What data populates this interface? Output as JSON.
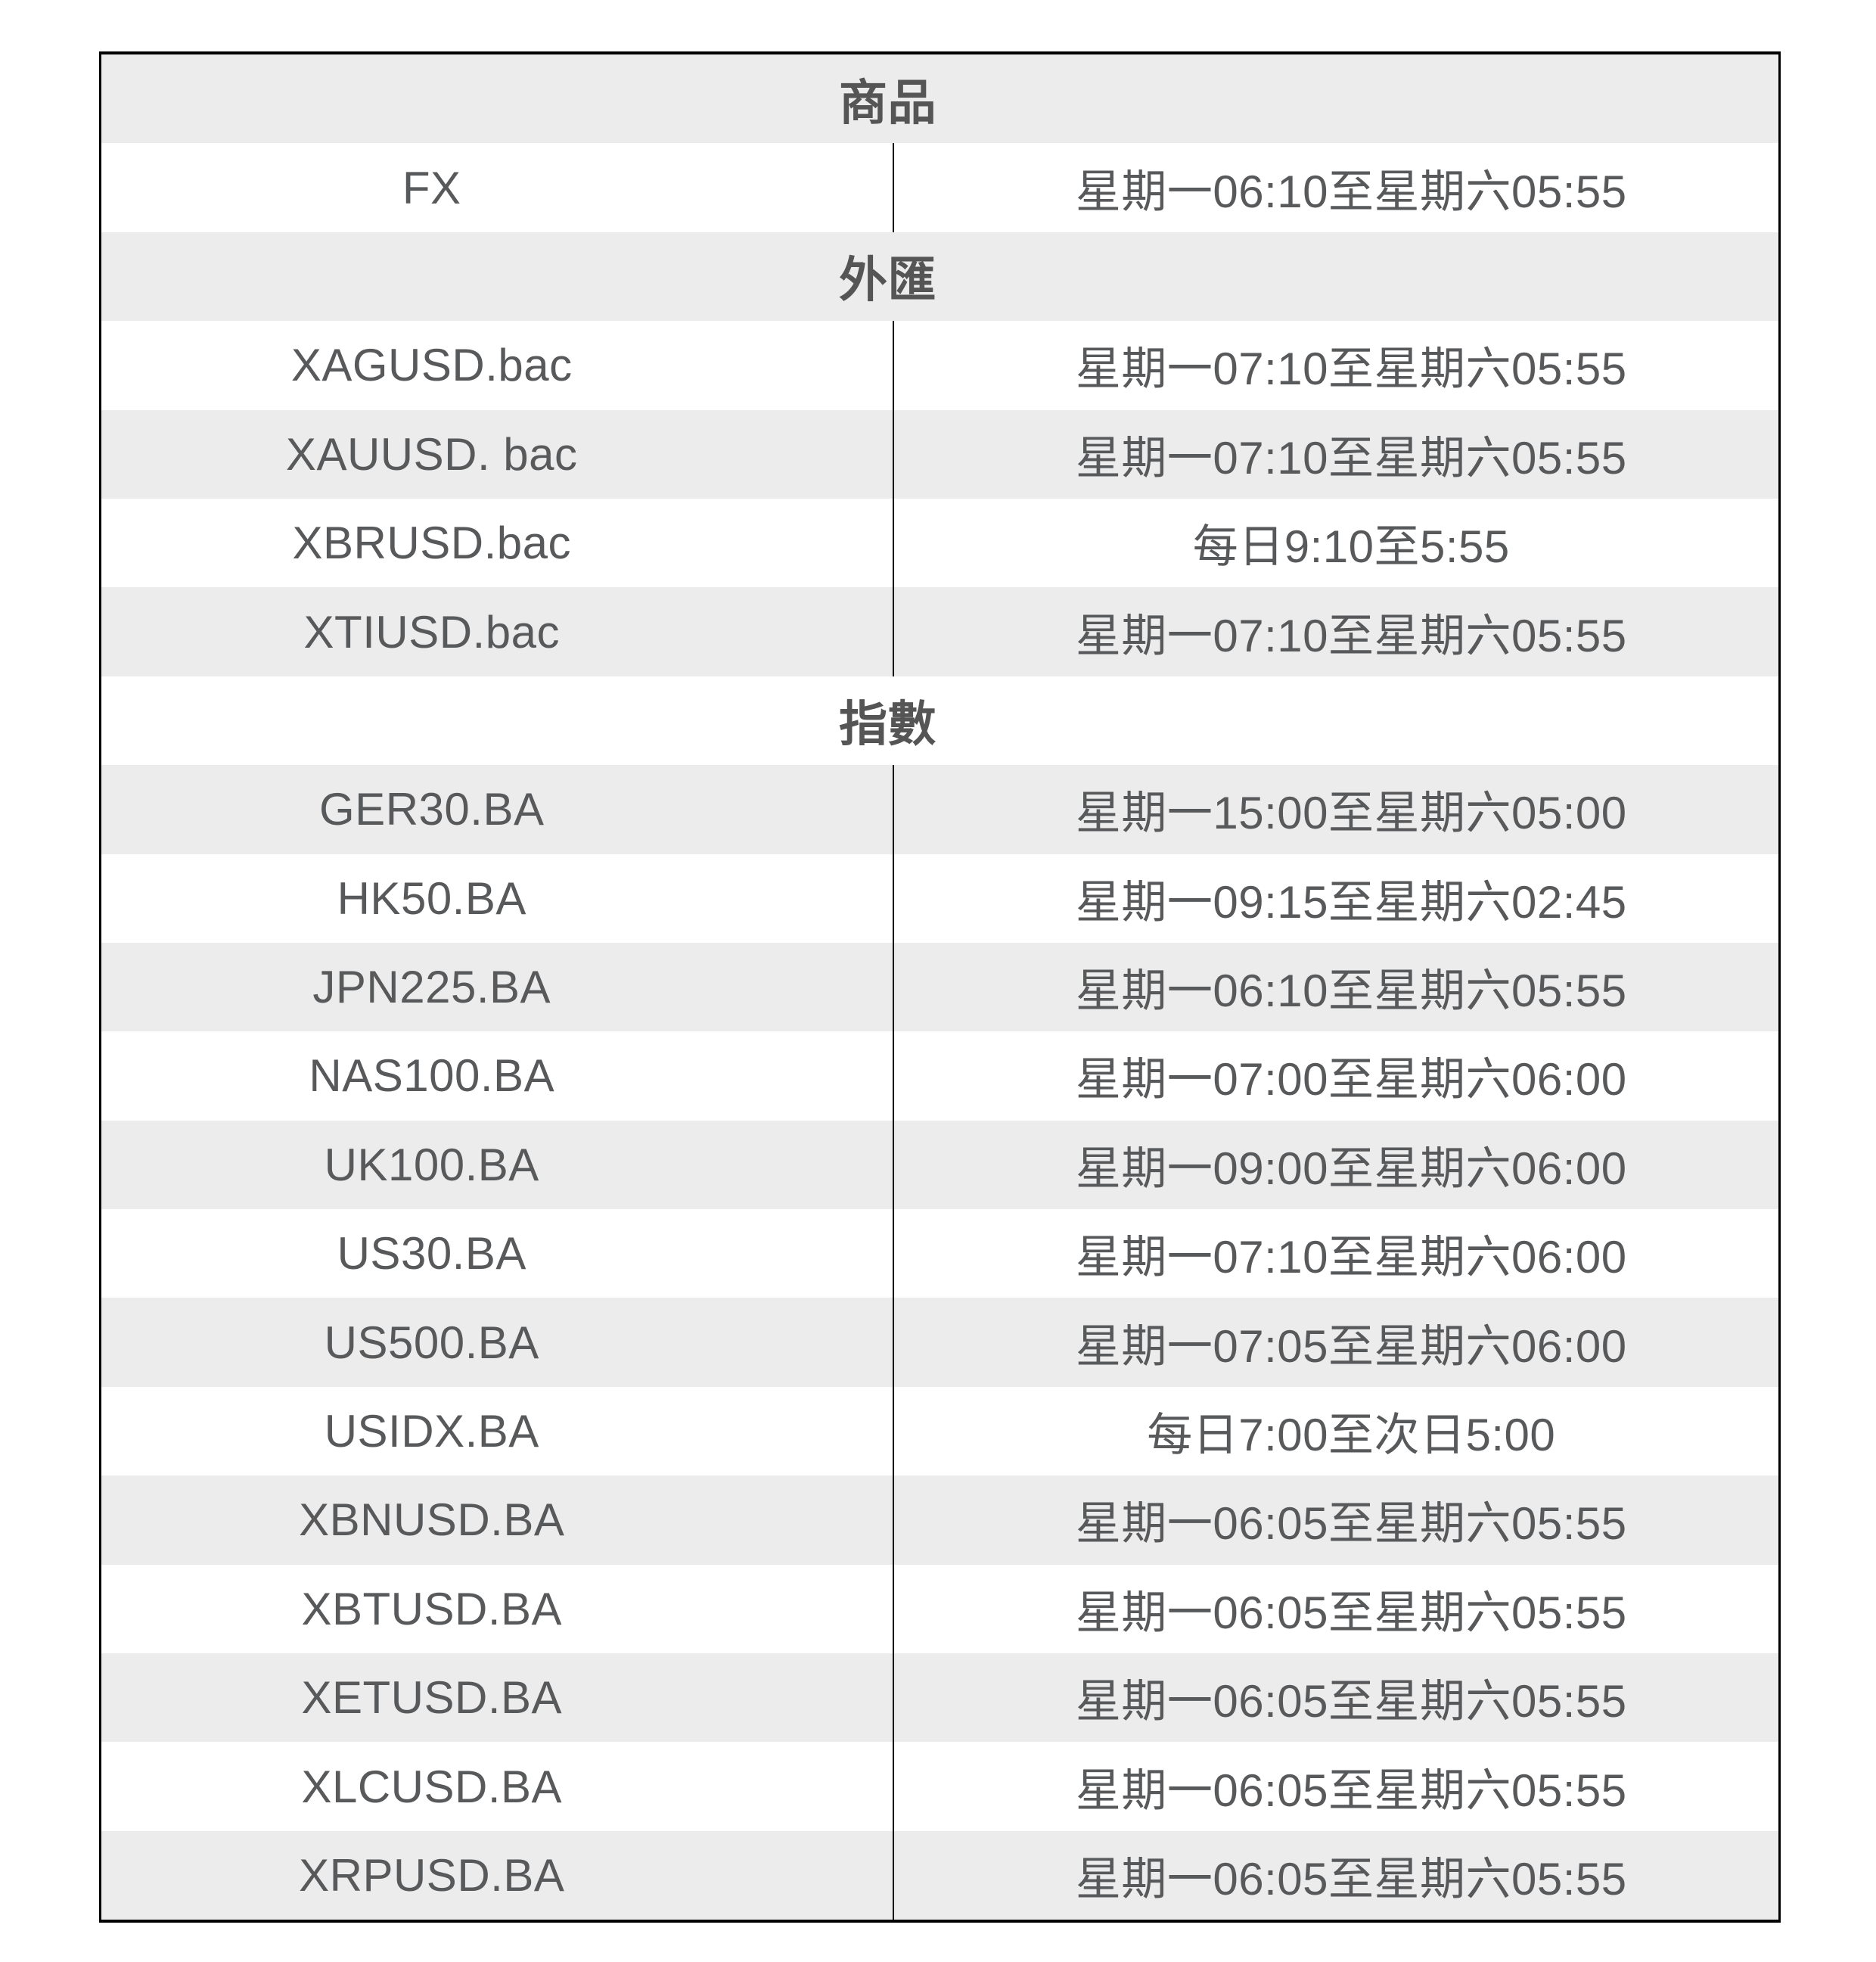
{
  "page": {
    "background": "#ffffff"
  },
  "table": {
    "columns": [
      "symbol",
      "trading_hours"
    ],
    "style": {
      "stripe_color": "#ececec",
      "border_color": "#000000",
      "divider_color": "#000000",
      "text_color": "#58595b",
      "header_text_color": "#555555"
    },
    "sections": [
      {
        "header": "商品",
        "rows": [
          {
            "symbol": "FX",
            "hours": "星期一06:10至星期六05:55"
          }
        ]
      },
      {
        "header": "外匯",
        "rows": [
          {
            "symbol": "XAGUSD.bac",
            "hours": "星期一07:10至星期六05:55"
          },
          {
            "symbol": "XAUUSD. bac",
            "hours": "星期一07:10至星期六05:55"
          },
          {
            "symbol": "XBRUSD.bac",
            "hours": "每日9:10至5:55"
          },
          {
            "symbol": "XTIUSD.bac",
            "hours": "星期一07:10至星期六05:55"
          }
        ]
      },
      {
        "header": "指數",
        "rows": [
          {
            "symbol": "GER30.BA",
            "hours": "星期一15:00至星期六05:00"
          },
          {
            "symbol": "HK50.BA",
            "hours": "星期一09:15至星期六02:45"
          },
          {
            "symbol": "JPN225.BA",
            "hours": "星期一06:10至星期六05:55"
          },
          {
            "symbol": "NAS100.BA",
            "hours": "星期一07:00至星期六06:00"
          },
          {
            "symbol": "UK100.BA",
            "hours": "星期一09:00至星期六06:00"
          },
          {
            "symbol": "US30.BA",
            "hours": "星期一07:10至星期六06:00"
          },
          {
            "symbol": "US500.BA",
            "hours": "星期一07:05至星期六06:00"
          },
          {
            "symbol": "USIDX.BA",
            "hours": "每日7:00至次日5:00"
          },
          {
            "symbol": "XBNUSD.BA",
            "hours": "星期一06:05至星期六05:55"
          },
          {
            "symbol": "XBTUSD.BA",
            "hours": "星期一06:05至星期六05:55"
          },
          {
            "symbol": "XETUSD.BA",
            "hours": "星期一06:05至星期六05:55"
          },
          {
            "symbol": "XLCUSD.BA",
            "hours": "星期一06:05至星期六05:55"
          },
          {
            "symbol": "XRPUSD.BA",
            "hours": "星期一06:05至星期六05:55"
          }
        ]
      }
    ]
  }
}
